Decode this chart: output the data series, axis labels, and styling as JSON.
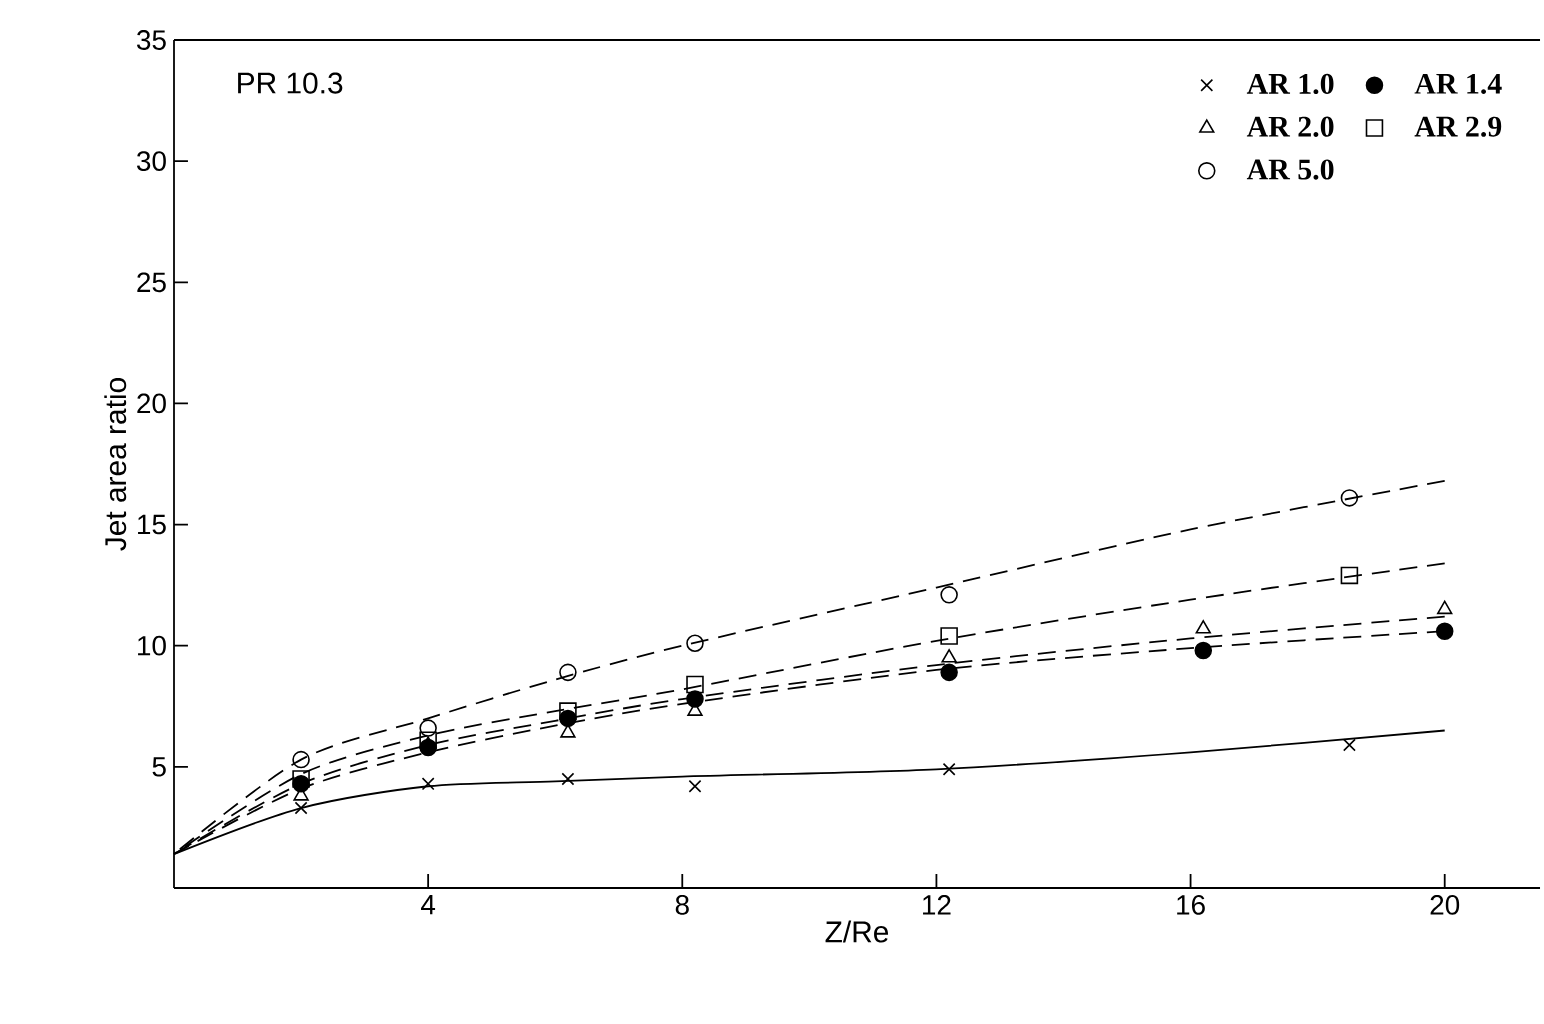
{
  "chart_data": {
    "type": "scatter",
    "xlabel": "Z/Re",
    "ylabel": "Jet area ratio",
    "annotations": [
      "PR 10.3"
    ],
    "xlim": [
      0,
      21.5
    ],
    "ylim": [
      0,
      35
    ],
    "xticks": [
      4,
      8,
      12,
      16,
      20
    ],
    "yticks": [
      5,
      10,
      15,
      20,
      25,
      30,
      35
    ],
    "legend": "top right",
    "series": [
      {
        "name": "AR 1.0",
        "color": "#000000",
        "marker": "cross",
        "x": [
          2,
          4,
          6.2,
          8.2,
          12.2,
          18.5
        ],
        "values": [
          3.3,
          4.3,
          4.5,
          4.2,
          4.9,
          5.9
        ]
      },
      {
        "name": "AR 1.4",
        "color": "#000000",
        "marker": "circle",
        "x": [
          2,
          4,
          6.2,
          8.2,
          12.2,
          16.2,
          20
        ],
        "values": [
          4.3,
          5.8,
          7.0,
          7.8,
          8.9,
          9.8,
          10.6
        ]
      },
      {
        "name": "AR 2.0",
        "color": "#000000",
        "marker": "triangle",
        "x": [
          2,
          4,
          6.2,
          8.2,
          12.2,
          16.2,
          20
        ],
        "values": [
          3.8,
          5.9,
          6.4,
          7.3,
          9.5,
          10.7,
          11.5
        ]
      },
      {
        "name": "AR 2.9",
        "color": "#000000",
        "marker": "square",
        "x": [
          2,
          4,
          6.2,
          8.2,
          12.2,
          18.5
        ],
        "values": [
          4.5,
          6.1,
          7.3,
          8.4,
          10.4,
          12.9
        ]
      },
      {
        "name": "AR 5.0",
        "color": "#000000",
        "marker": "circle",
        "x": [
          2,
          4,
          6.2,
          8.2,
          12.2,
          18.5
        ],
        "values": [
          5.3,
          6.6,
          8.9,
          10.1,
          12.1,
          16.1
        ]
      },
      {
        "type": "line",
        "color": "#000000",
        "marker": "none",
        "line_style": "solid",
        "x": [
          0,
          2,
          4,
          6,
          8,
          12,
          16,
          20
        ],
        "values": [
          1.4,
          3.3,
          4.2,
          4.4,
          4.6,
          4.9,
          5.6,
          6.5
        ]
      },
      {
        "type": "line",
        "color": "#000000",
        "marker": "none",
        "line_style": "dashed",
        "x": [
          0,
          2,
          4,
          6,
          8,
          12,
          16,
          20
        ],
        "values": [
          1.4,
          4.1,
          5.6,
          6.7,
          7.6,
          9.0,
          9.9,
          10.6
        ]
      },
      {
        "type": "line",
        "color": "#000000",
        "marker": "none",
        "line_style": "dashed",
        "x": [
          0,
          2,
          4,
          6,
          8,
          12,
          16,
          20
        ],
        "values": [
          1.4,
          4.3,
          5.9,
          6.9,
          7.8,
          9.2,
          10.3,
          11.2
        ]
      },
      {
        "type": "line",
        "color": "#000000",
        "marker": "none",
        "line_style": "dashed",
        "x": [
          0,
          2,
          4,
          6,
          8,
          12,
          16,
          20
        ],
        "values": [
          1.4,
          4.7,
          6.3,
          7.3,
          8.2,
          10.2,
          11.9,
          13.4
        ]
      },
      {
        "type": "line",
        "color": "#000000",
        "marker": "none",
        "line_style": "dashed",
        "x": [
          0,
          2,
          4,
          6,
          8,
          12,
          16,
          20
        ],
        "values": [
          1.4,
          5.3,
          7.0,
          8.6,
          10.0,
          12.4,
          14.8,
          16.8
        ]
      }
    ]
  }
}
